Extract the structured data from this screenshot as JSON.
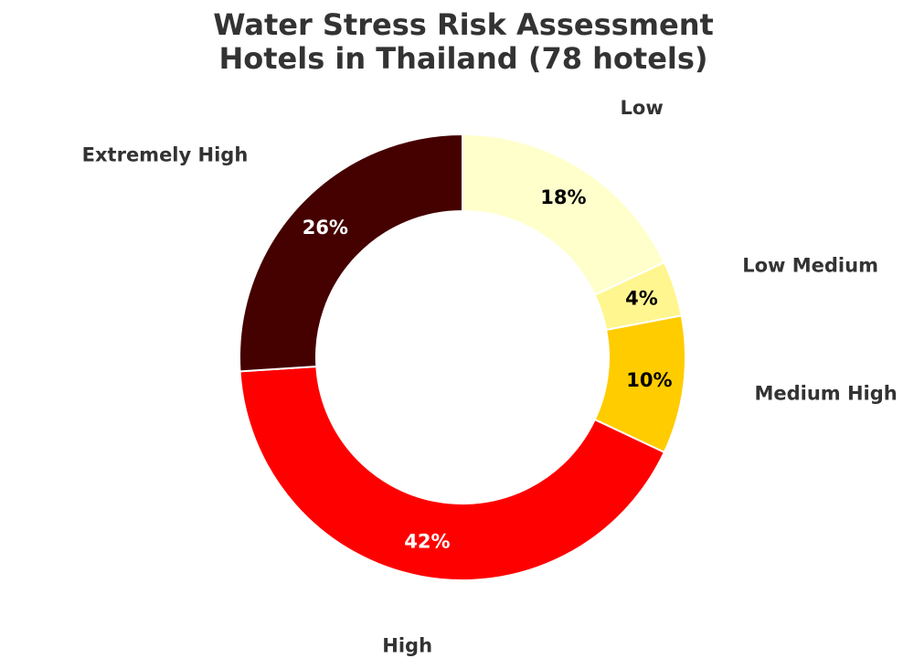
{
  "chart_data": {
    "type": "pie",
    "donut": true,
    "title_lines": [
      "Water Stress Risk Assessment",
      "Hotels in Thailand (78 hotels)"
    ],
    "slices": [
      {
        "label": "Low",
        "value": 18,
        "pct_text": "18%",
        "color": "#FFFFCC",
        "pct_color": "#000000"
      },
      {
        "label": "Low Medium",
        "value": 4,
        "pct_text": "4%",
        "color": "#FFF68F",
        "pct_color": "#000000"
      },
      {
        "label": "Medium High",
        "value": 10,
        "pct_text": "10%",
        "color": "#FFCC00",
        "pct_color": "#000000"
      },
      {
        "label": "High",
        "value": 42,
        "pct_text": "42%",
        "color": "#FF0000",
        "pct_color": "#FFFFFF"
      },
      {
        "label": "Extremely High",
        "value": 26,
        "pct_text": "26%",
        "color": "#450000",
        "pct_color": "#FFFFFF"
      }
    ],
    "start": "top",
    "direction": "clockwise",
    "legend": "none"
  }
}
